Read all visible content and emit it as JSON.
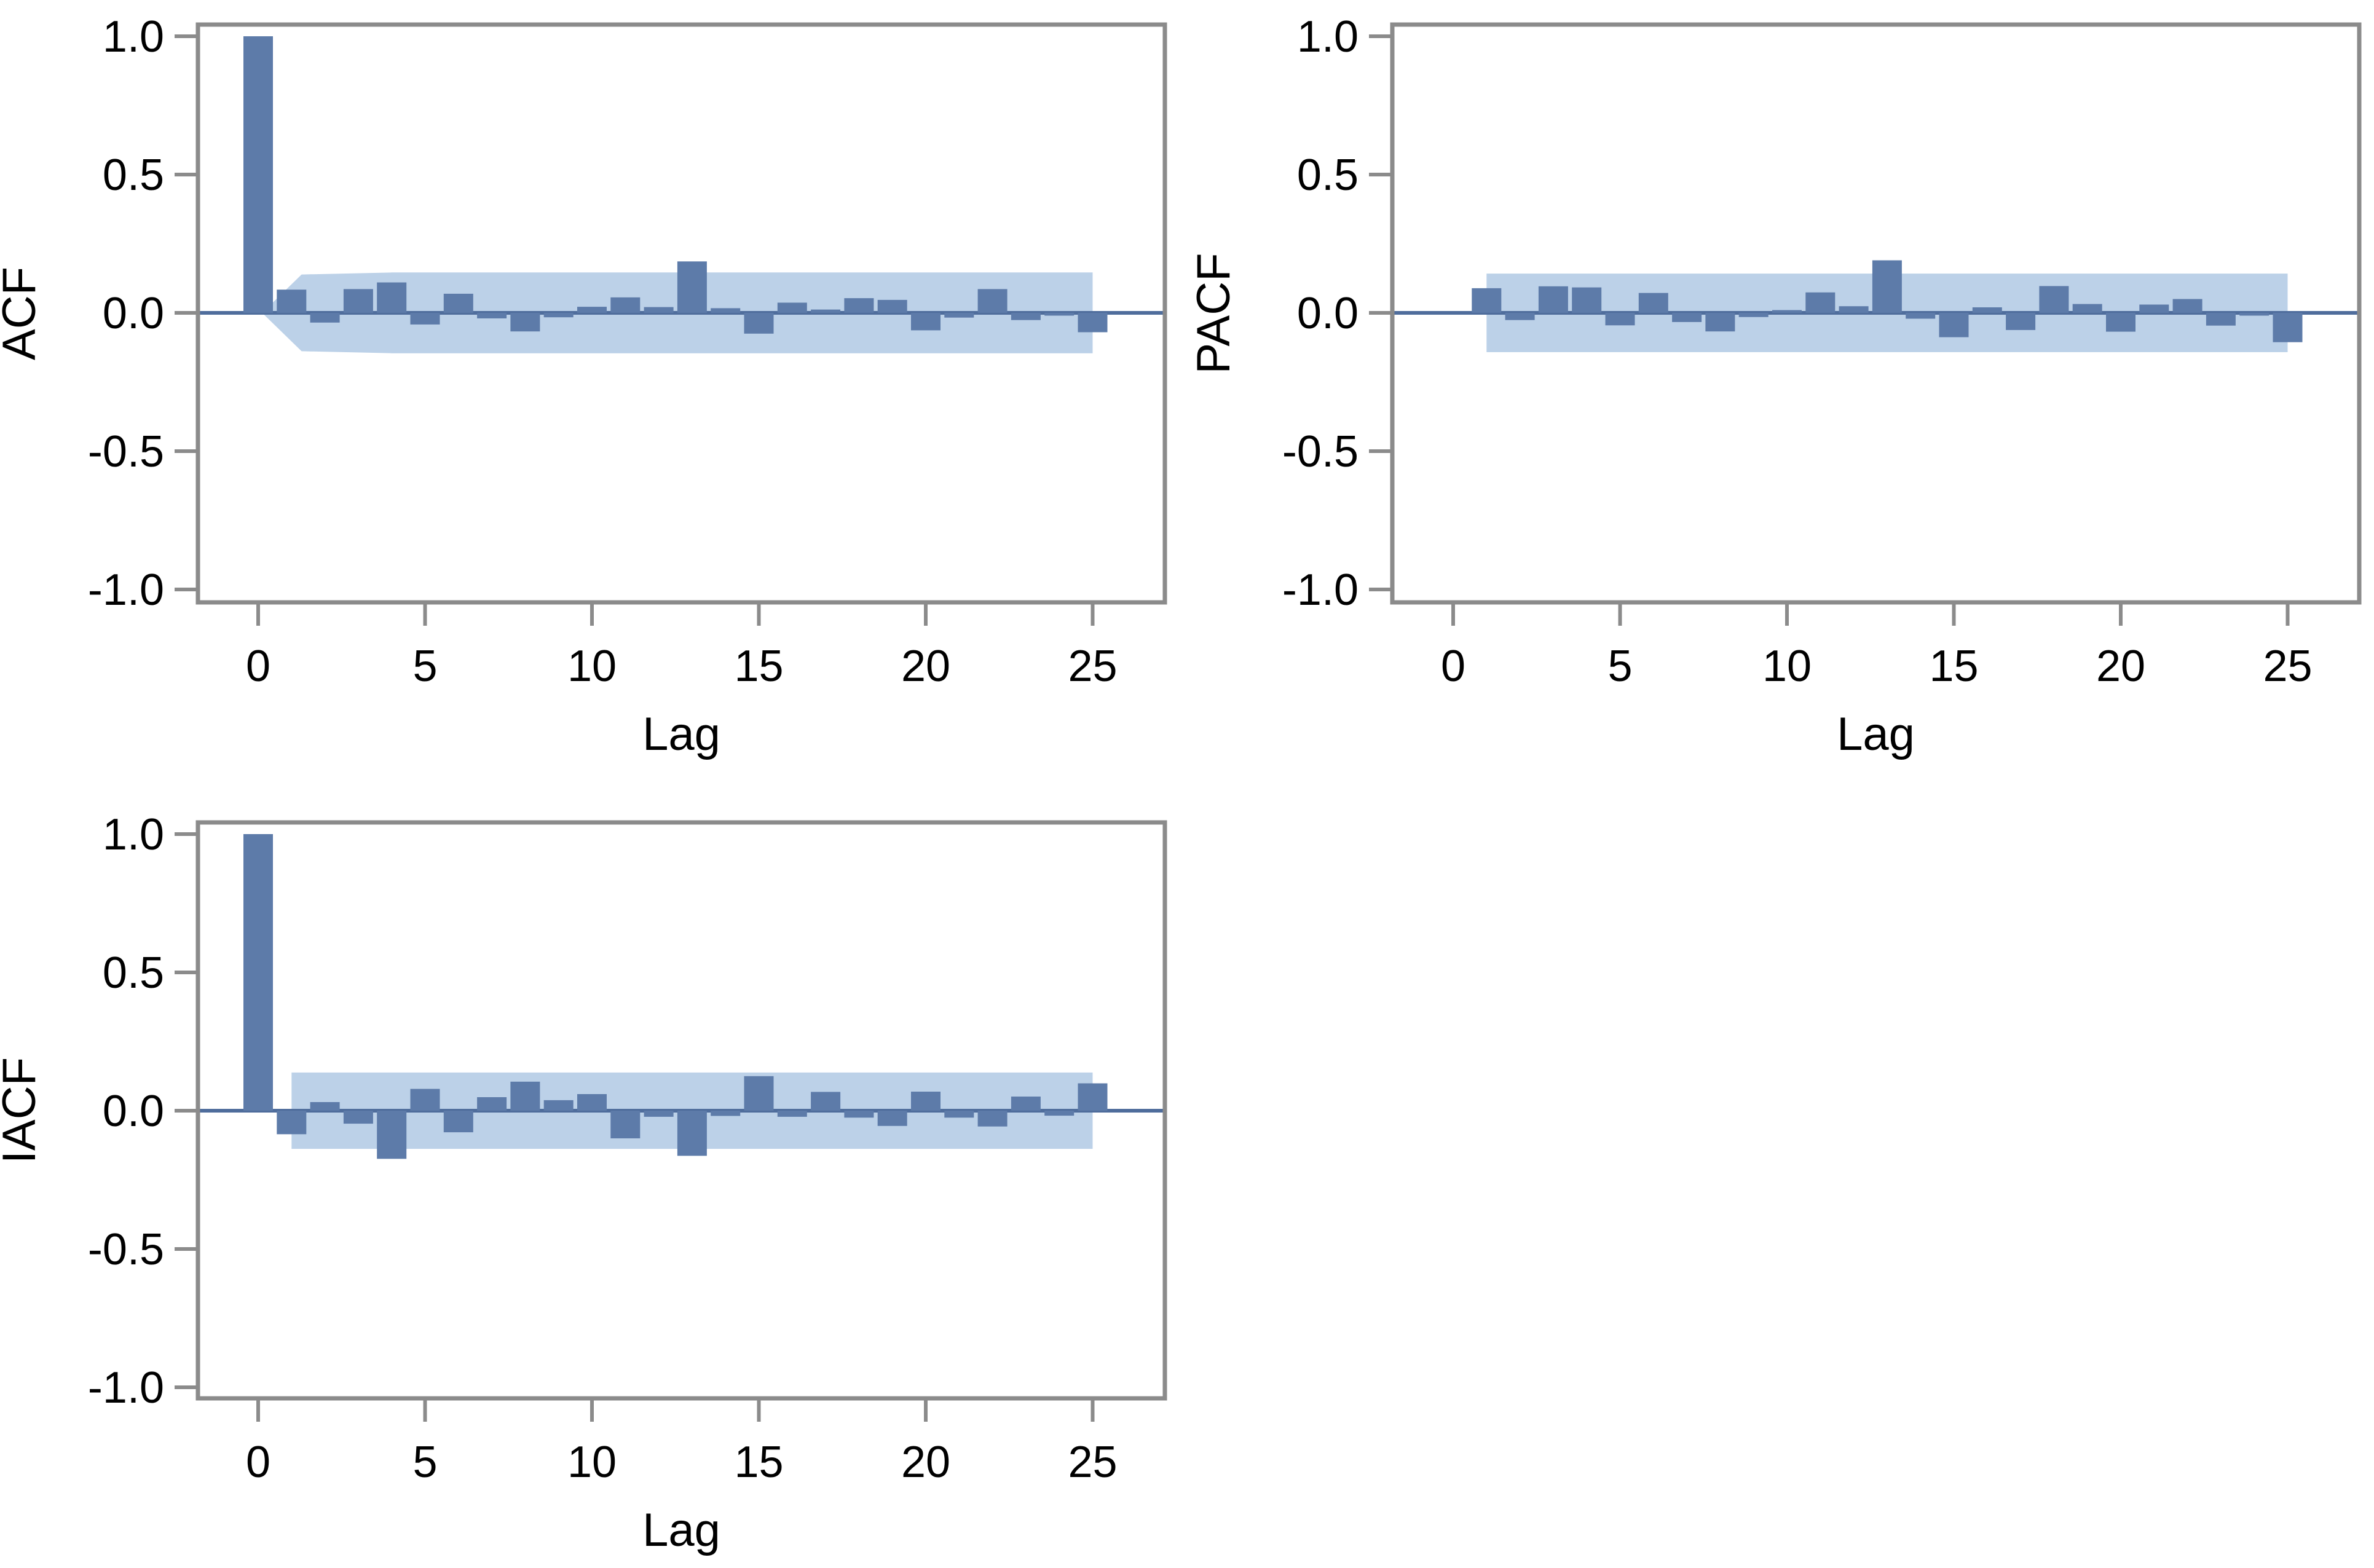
{
  "figure": {
    "background": "#ffffff",
    "kind": "SAS correlation analysis panel (ACF / PACF / IACF)"
  },
  "colors": {
    "bar": "#5d7ba9",
    "band": "#bcd1e8",
    "zero_line": "#4f6d9c",
    "axis": "#8b8b8b",
    "text": "#000000",
    "background": "#ffffff"
  },
  "chart_data": [
    {
      "id": "acf",
      "type": "bar",
      "title": "",
      "ylabel": "ACF",
      "xlabel": "Lag",
      "ylim": [
        -1.0,
        1.0
      ],
      "yticks": [
        "1.0",
        "0.5",
        "0.0",
        "-0.5",
        "-1.0"
      ],
      "ytick_values": [
        1.0,
        0.5,
        0.0,
        -0.5,
        -1.0
      ],
      "xticks": [
        "0",
        "5",
        "10",
        "15",
        "20",
        "25"
      ],
      "xtick_values": [
        0,
        5,
        10,
        15,
        20,
        25
      ],
      "grid": false,
      "legend": "none",
      "lags": [
        0,
        1,
        2,
        3,
        4,
        5,
        6,
        7,
        8,
        9,
        10,
        11,
        12,
        13,
        14,
        15,
        16,
        17,
        18,
        19,
        20,
        21,
        22,
        23,
        24,
        25
      ],
      "values": [
        1.0,
        0.084,
        -0.035,
        0.086,
        0.11,
        -0.042,
        0.069,
        -0.02,
        -0.067,
        -0.016,
        0.022,
        0.056,
        0.021,
        0.186,
        0.017,
        -0.075,
        0.037,
        0.012,
        0.053,
        0.047,
        -0.063,
        -0.017,
        0.086,
        -0.026,
        -0.01,
        -0.07
      ],
      "band": {
        "halfwidth": 0.146,
        "start_lag": 1,
        "end_lag": 25,
        "taper_from_zero": true
      }
    },
    {
      "id": "pacf",
      "type": "bar",
      "title": "",
      "ylabel": "PACF",
      "xlabel": "Lag",
      "ylim": [
        -1.0,
        1.0
      ],
      "yticks": [
        "1.0",
        "0.5",
        "0.0",
        "-0.5",
        "-1.0"
      ],
      "ytick_values": [
        1.0,
        0.5,
        0.0,
        -0.5,
        -1.0
      ],
      "xticks": [
        "0",
        "5",
        "10",
        "15",
        "20",
        "25"
      ],
      "xtick_values": [
        0,
        5,
        10,
        15,
        20,
        25
      ],
      "grid": false,
      "legend": "none",
      "lags": [
        1,
        2,
        3,
        4,
        5,
        6,
        7,
        8,
        9,
        10,
        11,
        12,
        13,
        14,
        15,
        16,
        17,
        18,
        19,
        20,
        21,
        22,
        23,
        24,
        25
      ],
      "values": [
        0.089,
        -0.026,
        0.096,
        0.092,
        -0.045,
        0.072,
        -0.033,
        -0.067,
        -0.015,
        0.01,
        0.074,
        0.024,
        0.19,
        -0.021,
        -0.088,
        0.02,
        -0.062,
        0.097,
        0.032,
        -0.068,
        0.03,
        0.05,
        -0.046,
        -0.01,
        -0.106
      ],
      "band": {
        "halfwidth": 0.142,
        "start_lag": 1,
        "end_lag": 25,
        "taper_from_zero": false
      }
    },
    {
      "id": "iacf",
      "type": "bar",
      "title": "",
      "ylabel": "IACF",
      "xlabel": "Lag",
      "ylim": [
        -1.0,
        1.0
      ],
      "yticks": [
        "1.0",
        "0.5",
        "0.0",
        "-0.5",
        "-1.0"
      ],
      "ytick_values": [
        1.0,
        0.5,
        0.0,
        -0.5,
        -1.0
      ],
      "xticks": [
        "0",
        "5",
        "10",
        "15",
        "20",
        "25"
      ],
      "xtick_values": [
        0,
        5,
        10,
        15,
        20,
        25
      ],
      "grid": false,
      "legend": "none",
      "lags": [
        0,
        1,
        2,
        3,
        4,
        5,
        6,
        7,
        8,
        9,
        10,
        11,
        12,
        13,
        14,
        15,
        16,
        17,
        18,
        19,
        20,
        21,
        22,
        23,
        24,
        25
      ],
      "values": [
        1.0,
        -0.085,
        0.031,
        -0.047,
        -0.174,
        0.079,
        -0.078,
        0.049,
        0.105,
        0.038,
        0.06,
        -0.1,
        -0.022,
        -0.163,
        -0.019,
        0.125,
        -0.022,
        0.068,
        -0.025,
        -0.055,
        0.069,
        -0.025,
        -0.057,
        0.051,
        -0.018,
        0.099
      ],
      "band": {
        "halfwidth": 0.138,
        "start_lag": 1,
        "end_lag": 25,
        "taper_from_zero": false
      }
    }
  ]
}
